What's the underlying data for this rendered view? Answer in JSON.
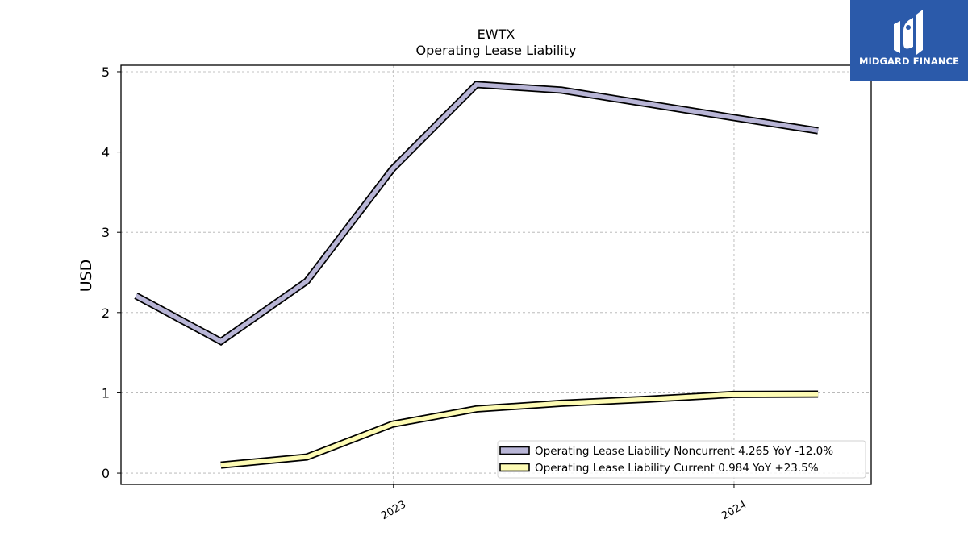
{
  "chart_data": {
    "type": "line",
    "title": "EWTX",
    "subtitle": "Operating Lease Liability",
    "ylabel": "USD",
    "xlabel": "",
    "ylim": [
      -0.14,
      5.08
    ],
    "xlim": [
      "2022-03-15",
      "2024-05-27"
    ],
    "yticks": [
      0,
      1,
      2,
      3,
      4,
      5
    ],
    "xticks": [
      {
        "date": "2023-01-01",
        "label": "2023"
      },
      {
        "date": "2024-01-01",
        "label": "2024"
      }
    ],
    "grid": true,
    "legend_position": "lower-right",
    "series": [
      {
        "name": "Operating Lease Liability Noncurrent",
        "legend_label": "Operating Lease Liability Noncurrent  4.265 YoY -12.0%",
        "color": "#b8b5d6",
        "points": [
          {
            "x": "2022-03-31",
            "y": 2.21
          },
          {
            "x": "2022-06-30",
            "y": 1.64
          },
          {
            "x": "2022-09-30",
            "y": 2.39
          },
          {
            "x": "2022-12-31",
            "y": 3.79
          },
          {
            "x": "2023-03-31",
            "y": 4.84
          },
          {
            "x": "2023-06-30",
            "y": 4.77
          },
          {
            "x": "2023-09-30",
            "y": 4.6
          },
          {
            "x": "2023-12-31",
            "y": 4.43
          },
          {
            "x": "2024-03-31",
            "y": 4.265
          }
        ]
      },
      {
        "name": "Operating Lease Liability Current",
        "legend_label": "Operating Lease Liability Current  0.984 YoY +23.5%",
        "color": "#fdfbb4",
        "points": [
          {
            "x": "2022-06-30",
            "y": 0.1
          },
          {
            "x": "2022-09-30",
            "y": 0.2
          },
          {
            "x": "2022-12-31",
            "y": 0.61
          },
          {
            "x": "2023-03-31",
            "y": 0.8
          },
          {
            "x": "2023-06-30",
            "y": 0.87
          },
          {
            "x": "2023-09-30",
            "y": 0.92
          },
          {
            "x": "2023-12-31",
            "y": 0.98
          },
          {
            "x": "2024-03-31",
            "y": 0.984
          }
        ]
      }
    ]
  },
  "logo": {
    "text": "MIDGARD FINANCE",
    "icon": "midgard-logo-icon",
    "background": "#2b5aaa"
  }
}
